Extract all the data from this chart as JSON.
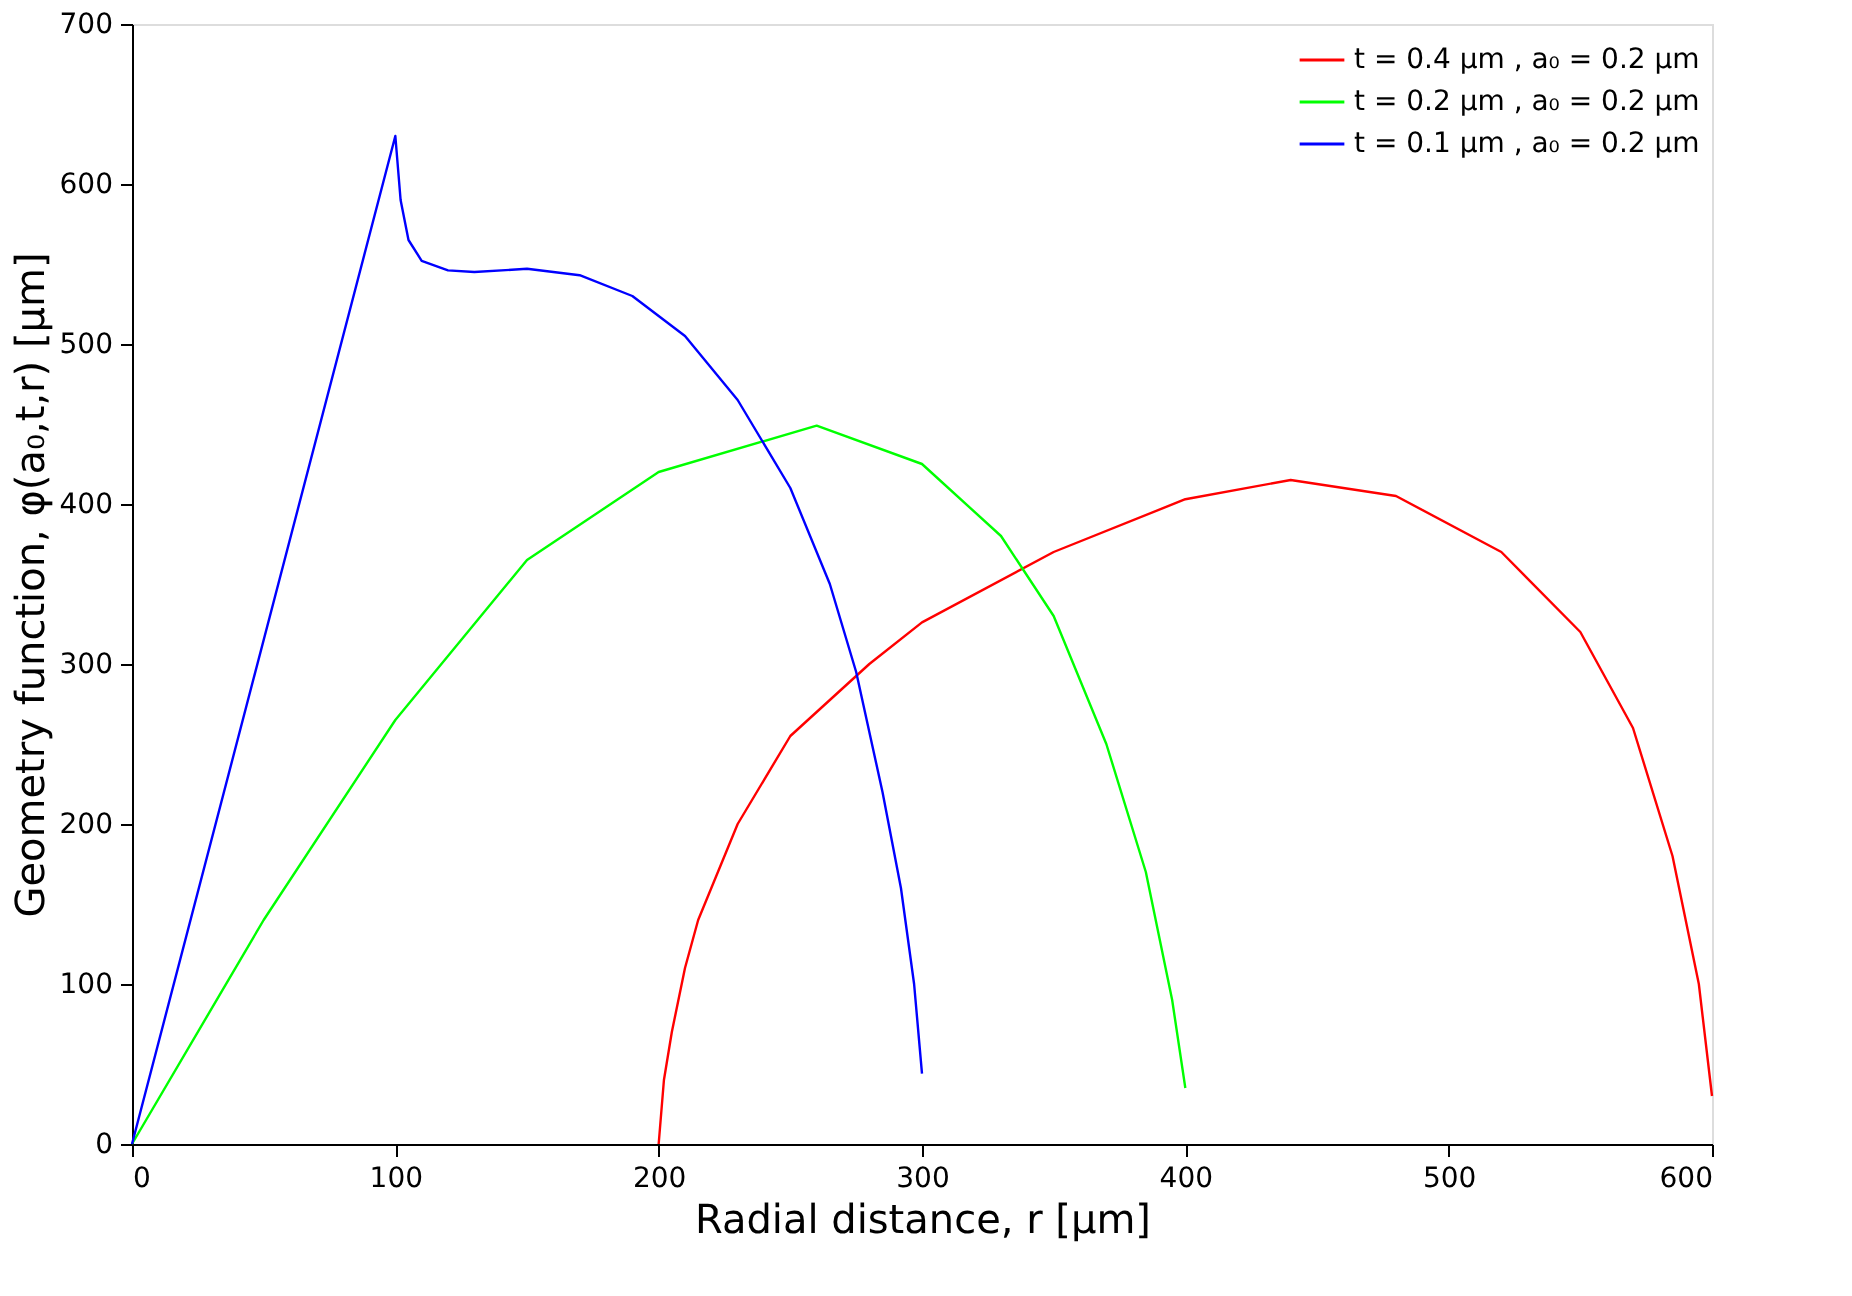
{
  "chart_data": {
    "type": "line",
    "xlabel": "Radial distance, r [µm]",
    "ylabel": "Geometry function, φ(a₀,t,r) [µm]",
    "xlim": [
      0,
      600
    ],
    "ylim": [
      0,
      700
    ],
    "xticks": [
      0,
      100,
      200,
      300,
      400,
      500,
      600
    ],
    "yticks": [
      0,
      100,
      200,
      300,
      400,
      500,
      600,
      700
    ],
    "grid": false,
    "legend": "top right",
    "line_style": "solid",
    "series": [
      {
        "name": "t = 0.4 µm , a₀ = 0.2 µm",
        "color": "#ff0000",
        "x": [
          200,
          202,
          205,
          210,
          215,
          230,
          250,
          280,
          300,
          350,
          400,
          440,
          480,
          520,
          550,
          570,
          585,
          595,
          600
        ],
        "values": [
          0,
          40,
          70,
          110,
          140,
          200,
          255,
          300,
          326,
          370,
          403,
          415,
          405,
          370,
          320,
          260,
          180,
          100,
          30
        ]
      },
      {
        "name": "t = 0.2 µm , a₀ = 0.2 µm",
        "color": "#00ff00",
        "x": [
          0,
          50,
          100,
          150,
          200,
          260,
          300,
          330,
          350,
          370,
          385,
          395,
          400
        ],
        "values": [
          0,
          140,
          265,
          365,
          420,
          449,
          425,
          380,
          330,
          250,
          170,
          90,
          35
        ]
      },
      {
        "name": "t = 0.1 µm , a₀ = 0.2 µm",
        "color": "#0000ff",
        "x": [
          0,
          100,
          102,
          105,
          110,
          120,
          130,
          150,
          170,
          190,
          210,
          230,
          250,
          265,
          275,
          285,
          292,
          297,
          300
        ],
        "values": [
          0,
          630,
          590,
          565,
          552,
          546,
          545,
          547,
          543,
          530,
          505,
          465,
          410,
          350,
          295,
          220,
          160,
          100,
          44
        ]
      }
    ]
  }
}
